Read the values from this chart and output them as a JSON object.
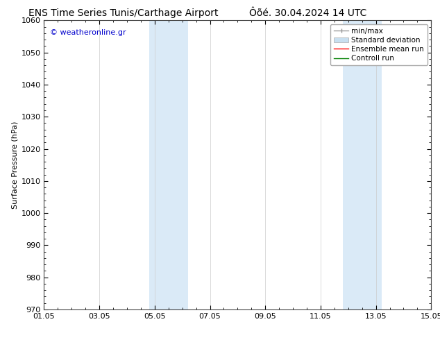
{
  "title_left": "ENS Time Series Tunis/Carthage Airport",
  "title_right": "Ôõé. 30.04.2024 14 UTC",
  "ylabel": "Surface Pressure (hPa)",
  "ylim": [
    970,
    1060
  ],
  "yticks": [
    970,
    980,
    990,
    1000,
    1010,
    1020,
    1030,
    1040,
    1050,
    1060
  ],
  "xlim_start": 0,
  "xlim_end": 14,
  "xtick_labels": [
    "01.05",
    "03.05",
    "05.05",
    "07.05",
    "09.05",
    "11.05",
    "13.05",
    "15.05"
  ],
  "xtick_positions": [
    0,
    2,
    4,
    6,
    8,
    10,
    12,
    14
  ],
  "shaded_bands": [
    {
      "x_start": 3.8,
      "x_end": 5.2,
      "color": "#daeaf7"
    },
    {
      "x_start": 10.8,
      "x_end": 12.2,
      "color": "#daeaf7"
    }
  ],
  "watermark_text": "© weatheronline.gr",
  "watermark_color": "#0000cc",
  "bg_color": "#ffffff",
  "axis_bg_color": "#ffffff",
  "legend_items": [
    {
      "label": "min/max",
      "color": "#aaaaaa",
      "lw": 1.0
    },
    {
      "label": "Standard deviation",
      "color": "#c8dff0",
      "lw": 6
    },
    {
      "label": "Ensemble mean run",
      "color": "#ff0000",
      "lw": 1.0
    },
    {
      "label": "Controll run",
      "color": "#008000",
      "lw": 1.0
    }
  ],
  "title_fontsize": 10,
  "tick_fontsize": 8,
  "legend_fontsize": 7.5,
  "ylabel_fontsize": 8
}
